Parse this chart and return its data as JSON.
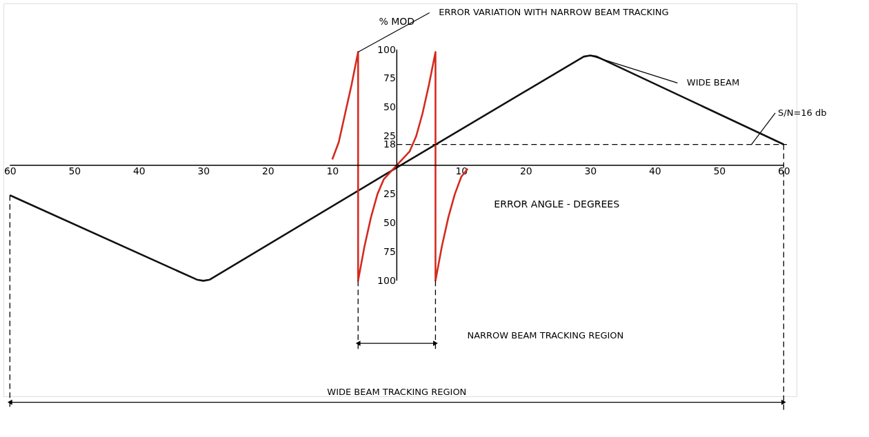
{
  "chart_data": {
    "type": "line",
    "xlabel": "ERROR ANGLE - DEGREES",
    "ylabel": "% MOD",
    "xlim": [
      -61,
      62
    ],
    "ylim": [
      -200,
      140
    ],
    "xticks": [
      {
        "value": -60,
        "label": "60"
      },
      {
        "value": -50,
        "label": "50"
      },
      {
        "value": -40,
        "label": "40"
      },
      {
        "value": -30,
        "label": "30"
      },
      {
        "value": -20,
        "label": "20"
      },
      {
        "value": -10,
        "label": "10"
      },
      10,
      20,
      30,
      40,
      50,
      60
    ],
    "yticks": [
      {
        "value": -100,
        "label": "100"
      },
      {
        "value": -75,
        "label": "75"
      },
      {
        "value": -50,
        "label": "50"
      },
      {
        "value": -25,
        "label": "25"
      },
      18,
      25,
      50,
      75,
      100
    ],
    "series": [
      {
        "name": "WIDE BEAM",
        "color": "#111111",
        "x": [
          -60,
          -31,
          -30,
          -29,
          0,
          29,
          30,
          31,
          60
        ],
        "values": [
          -26,
          -99,
          -100,
          -99,
          -2,
          94,
          95,
          94,
          18
        ]
      },
      {
        "name": "ERROR VARIATION WITH NARROW BEAM TRACKING",
        "color": "#d42a1e",
        "x": [
          -10,
          -9,
          -8,
          -7,
          -6,
          -6,
          -5,
          -4,
          -3,
          -2,
          0,
          2,
          3,
          4,
          5,
          6,
          6,
          7,
          8,
          9,
          10,
          11
        ],
        "values": [
          5,
          20,
          45,
          70,
          98,
          -100,
          -70,
          -45,
          -25,
          -12,
          0,
          12,
          25,
          45,
          70,
          98,
          -100,
          -70,
          -45,
          -25,
          -10,
          -3
        ]
      }
    ],
    "ref_lines": [
      {
        "axis": "y",
        "value": 18,
        "line_style": "dashed"
      },
      {
        "axis": "x",
        "value": -6,
        "line_style": "dashed"
      },
      {
        "axis": "x",
        "value": 6,
        "line_style": "dashed"
      },
      {
        "axis": "x",
        "value": -60,
        "line_style": "dashed"
      },
      {
        "axis": "x",
        "value": 60,
        "line_style": "dashed"
      }
    ],
    "annotations": [
      {
        "text": "S/N=16 db",
        "x": 55,
        "y": 18
      },
      "NARROW BEAM TRACKING REGION",
      "WIDE BEAM TRACKING REGION"
    ],
    "grid": false
  }
}
